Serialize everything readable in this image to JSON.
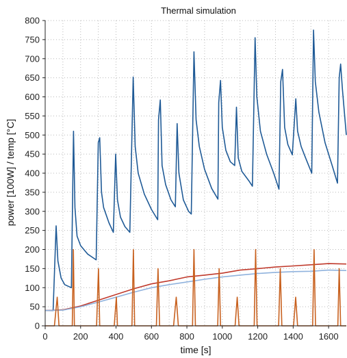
{
  "chart_data": {
    "type": "line",
    "title": "Thermal simulation",
    "xlabel": "time [s]",
    "ylabel": "power [100W] / temp [°C]",
    "xlim": [
      0,
      1700
    ],
    "ylim": [
      0,
      800
    ],
    "xticks": [
      0,
      200,
      400,
      600,
      800,
      1000,
      1200,
      1400,
      1600
    ],
    "yticks": [
      0,
      50,
      100,
      150,
      200,
      250,
      300,
      350,
      400,
      450,
      500,
      550,
      600,
      650,
      700,
      750,
      800
    ],
    "grid": true,
    "series": [
      {
        "color": "#1f5a96",
        "points": [
          [
            0,
            40
          ],
          [
            45,
            40
          ],
          [
            62,
            262
          ],
          [
            72,
            170
          ],
          [
            90,
            125
          ],
          [
            110,
            108
          ],
          [
            148,
            100
          ],
          [
            160,
            510
          ],
          [
            168,
            310
          ],
          [
            180,
            235
          ],
          [
            200,
            210
          ],
          [
            240,
            188
          ],
          [
            288,
            173
          ],
          [
            300,
            480
          ],
          [
            308,
            493
          ],
          [
            318,
            350
          ],
          [
            330,
            310
          ],
          [
            360,
            270
          ],
          [
            385,
            245
          ],
          [
            398,
            450
          ],
          [
            408,
            330
          ],
          [
            425,
            285
          ],
          [
            450,
            260
          ],
          [
            478,
            245
          ],
          [
            497,
            652
          ],
          [
            508,
            470
          ],
          [
            525,
            400
          ],
          [
            560,
            345
          ],
          [
            600,
            305
          ],
          [
            635,
            278
          ],
          [
            640,
            540
          ],
          [
            650,
            592
          ],
          [
            660,
            420
          ],
          [
            680,
            370
          ],
          [
            710,
            330
          ],
          [
            735,
            312
          ],
          [
            745,
            530
          ],
          [
            755,
            400
          ],
          [
            780,
            330
          ],
          [
            810,
            300
          ],
          [
            825,
            293
          ],
          [
            840,
            718
          ],
          [
            852,
            540
          ],
          [
            870,
            470
          ],
          [
            900,
            410
          ],
          [
            940,
            360
          ],
          [
            975,
            332
          ],
          [
            980,
            585
          ],
          [
            990,
            643
          ],
          [
            1000,
            520
          ],
          [
            1020,
            460
          ],
          [
            1045,
            430
          ],
          [
            1070,
            420
          ],
          [
            1080,
            573
          ],
          [
            1090,
            440
          ],
          [
            1110,
            405
          ],
          [
            1150,
            380
          ],
          [
            1170,
            366
          ],
          [
            1185,
            755
          ],
          [
            1195,
            600
          ],
          [
            1215,
            510
          ],
          [
            1250,
            450
          ],
          [
            1290,
            400
          ],
          [
            1320,
            358
          ],
          [
            1330,
            640
          ],
          [
            1340,
            672
          ],
          [
            1352,
            520
          ],
          [
            1370,
            475
          ],
          [
            1395,
            448
          ],
          [
            1415,
            595
          ],
          [
            1425,
            510
          ],
          [
            1445,
            470
          ],
          [
            1470,
            440
          ],
          [
            1505,
            400
          ],
          [
            1515,
            775
          ],
          [
            1525,
            640
          ],
          [
            1545,
            560
          ],
          [
            1580,
            480
          ],
          [
            1620,
            420
          ],
          [
            1650,
            374
          ],
          [
            1660,
            650
          ],
          [
            1668,
            686
          ],
          [
            1678,
            620
          ],
          [
            1700,
            500
          ]
        ]
      },
      {
        "color": "#c0392b",
        "points": [
          [
            0,
            40
          ],
          [
            100,
            42
          ],
          [
            200,
            52
          ],
          [
            300,
            67
          ],
          [
            400,
            82
          ],
          [
            500,
            97
          ],
          [
            600,
            110
          ],
          [
            700,
            118
          ],
          [
            800,
            128
          ],
          [
            900,
            133
          ],
          [
            1000,
            138
          ],
          [
            1100,
            146
          ],
          [
            1200,
            150
          ],
          [
            1300,
            154
          ],
          [
            1400,
            157
          ],
          [
            1500,
            160
          ],
          [
            1600,
            163
          ],
          [
            1700,
            162
          ]
        ]
      },
      {
        "color": "#8fb2dd",
        "points": [
          [
            0,
            40
          ],
          [
            100,
            41
          ],
          [
            200,
            50
          ],
          [
            300,
            62
          ],
          [
            400,
            75
          ],
          [
            500,
            88
          ],
          [
            600,
            100
          ],
          [
            700,
            108
          ],
          [
            800,
            115
          ],
          [
            900,
            122
          ],
          [
            1000,
            128
          ],
          [
            1100,
            133
          ],
          [
            1200,
            137
          ],
          [
            1300,
            140
          ],
          [
            1400,
            142
          ],
          [
            1500,
            143
          ],
          [
            1600,
            146
          ],
          [
            1700,
            145
          ]
        ]
      },
      {
        "color": "#c8611f",
        "pulses": [
          [
            52,
            78,
            68,
            75
          ],
          [
            153,
            165,
            159,
            200
          ],
          [
            290,
            308,
            301,
            150
          ],
          [
            390,
            408,
            402,
            75
          ],
          [
            490,
            505,
            498,
            200
          ],
          [
            628,
            646,
            637,
            150
          ],
          [
            725,
            752,
            740,
            75
          ],
          [
            832,
            848,
            840,
            200
          ],
          [
            974,
            990,
            982,
            150
          ],
          [
            1072,
            1094,
            1084,
            75
          ],
          [
            1180,
            1196,
            1188,
            200
          ],
          [
            1318,
            1336,
            1327,
            150
          ],
          [
            1402,
            1425,
            1414,
            75
          ],
          [
            1510,
            1526,
            1518,
            200
          ],
          [
            1652,
            1668,
            1660,
            150
          ]
        ]
      }
    ]
  }
}
